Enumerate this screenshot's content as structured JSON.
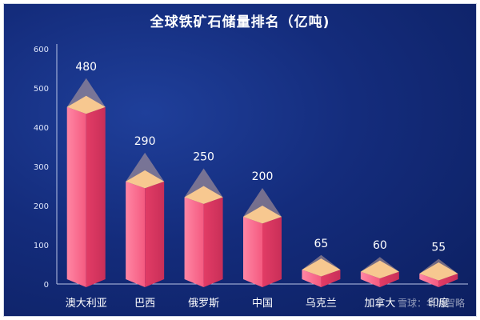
{
  "chart_data": {
    "type": "bar",
    "title": "全球铁矿石储量排名（亿吨)",
    "categories": [
      "澳大利亚",
      "巴西",
      "俄罗斯",
      "中国",
      "乌克兰",
      "加拿大",
      "印度"
    ],
    "values": [
      480,
      290,
      250,
      200,
      65,
      60,
      55
    ],
    "yticks": [
      0,
      100,
      200,
      300,
      400,
      500,
      600
    ],
    "ylim": [
      0,
      600
    ],
    "grid": false,
    "bar_color": "#f0507a",
    "cap_color": "#f7c890",
    "background": "#142c7c"
  },
  "watermark": "雪球：华尚智略"
}
